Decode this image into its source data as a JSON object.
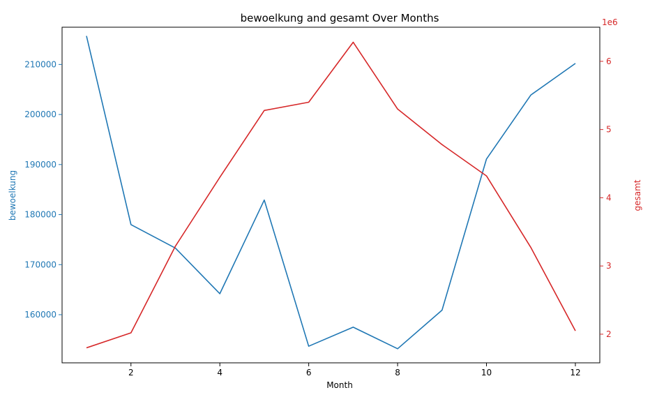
{
  "chart_data": {
    "type": "line",
    "title": "bewoelkung and gesamt Over Months",
    "xlabel": "Month",
    "xlim": [
      0.45,
      12.55
    ],
    "x_ticks": [
      2,
      4,
      6,
      8,
      10,
      12
    ],
    "x": [
      1,
      2,
      3,
      4,
      5,
      6,
      7,
      8,
      9,
      10,
      11,
      12
    ],
    "grid": false,
    "y_left": {
      "label": "bewoelkung",
      "color": "#1f77b4",
      "ylim": [
        150380,
        217440
      ],
      "ticks": [
        160000,
        170000,
        180000,
        190000,
        200000,
        210000
      ],
      "tick_labels": [
        "160000",
        "170000",
        "180000",
        "190000",
        "200000",
        "210000"
      ]
    },
    "y_right": {
      "label": "gesamt",
      "color": "#d62728",
      "ylim": [
        1580000,
        6500000
      ],
      "ticks": [
        2000000,
        3000000,
        4000000,
        5000000,
        6000000
      ],
      "tick_labels": [
        "2",
        "3",
        "4",
        "5",
        "6"
      ],
      "offset_text": "1e6"
    },
    "series": [
      {
        "name": "bewoelkung",
        "axis": "left",
        "color": "#1f77b4",
        "values": [
          215700,
          178000,
          173300,
          164200,
          182900,
          153700,
          157500,
          153200,
          160900,
          191100,
          203900,
          210200
        ]
      },
      {
        "name": "gesamt",
        "axis": "right",
        "color": "#d62728",
        "values": [
          1800000,
          2020000,
          3290000,
          4300000,
          5280000,
          5400000,
          6280000,
          5300000,
          4780000,
          4320000,
          3270000,
          2050000
        ]
      }
    ]
  }
}
